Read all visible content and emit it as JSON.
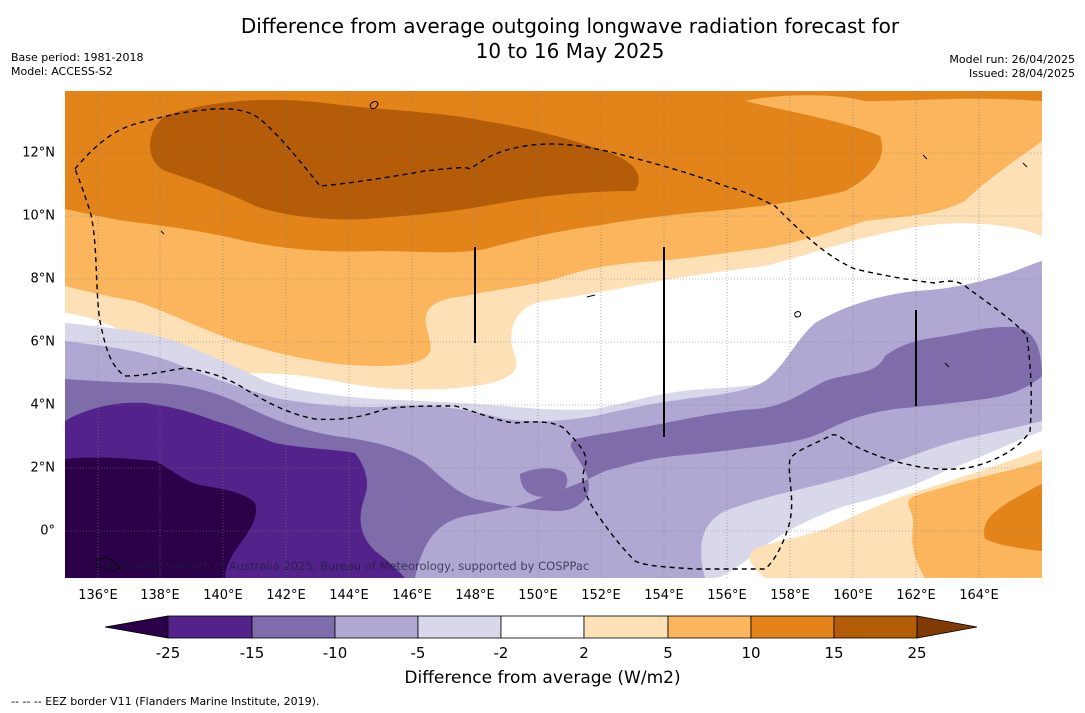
{
  "title_line1": "Difference from average outgoing longwave radiation forecast for",
  "title_line2": "10 to 16 May 2025",
  "base_period": "Base period: 1981-2018",
  "model": "Model: ACCESS-S2",
  "model_run": "Model run: 26/04/2025",
  "issued": "Issued: 28/04/2025",
  "map": {
    "lon_labels": [
      "136°E",
      "138°E",
      "140°E",
      "142°E",
      "144°E",
      "146°E",
      "148°E",
      "150°E",
      "152°E",
      "154°E",
      "156°E",
      "158°E",
      "160°E",
      "162°E",
      "164°E"
    ],
    "lat_labels": [
      "12°N",
      "10°N",
      "8°N",
      "6°N",
      "4°N",
      "2°N",
      "0°"
    ],
    "lon_range": [
      135,
      166
    ],
    "lat_range": [
      -1.5,
      14
    ],
    "credit": "© Commonwealth of Australia 2025, Bureau of Meteorology, supported by COSPPac"
  },
  "colorbar": {
    "tick_labels": [
      "-25",
      "-15",
      "-10",
      "-5",
      "-2",
      "2",
      "5",
      "10",
      "15",
      "25"
    ],
    "colors": [
      "#2b0049",
      "#53238b",
      "#7f6dab",
      "#b0a8d3",
      "#d8d8ea",
      "#ffffff",
      "#fde0b6",
      "#fbb65d",
      "#e2841a",
      "#b45c08",
      "#7f3a06"
    ],
    "label": "Difference from average (W/m2)"
  },
  "footnote": "--  --  -- EEZ border V11 (Flanders Marine Institute, 2019)."
}
